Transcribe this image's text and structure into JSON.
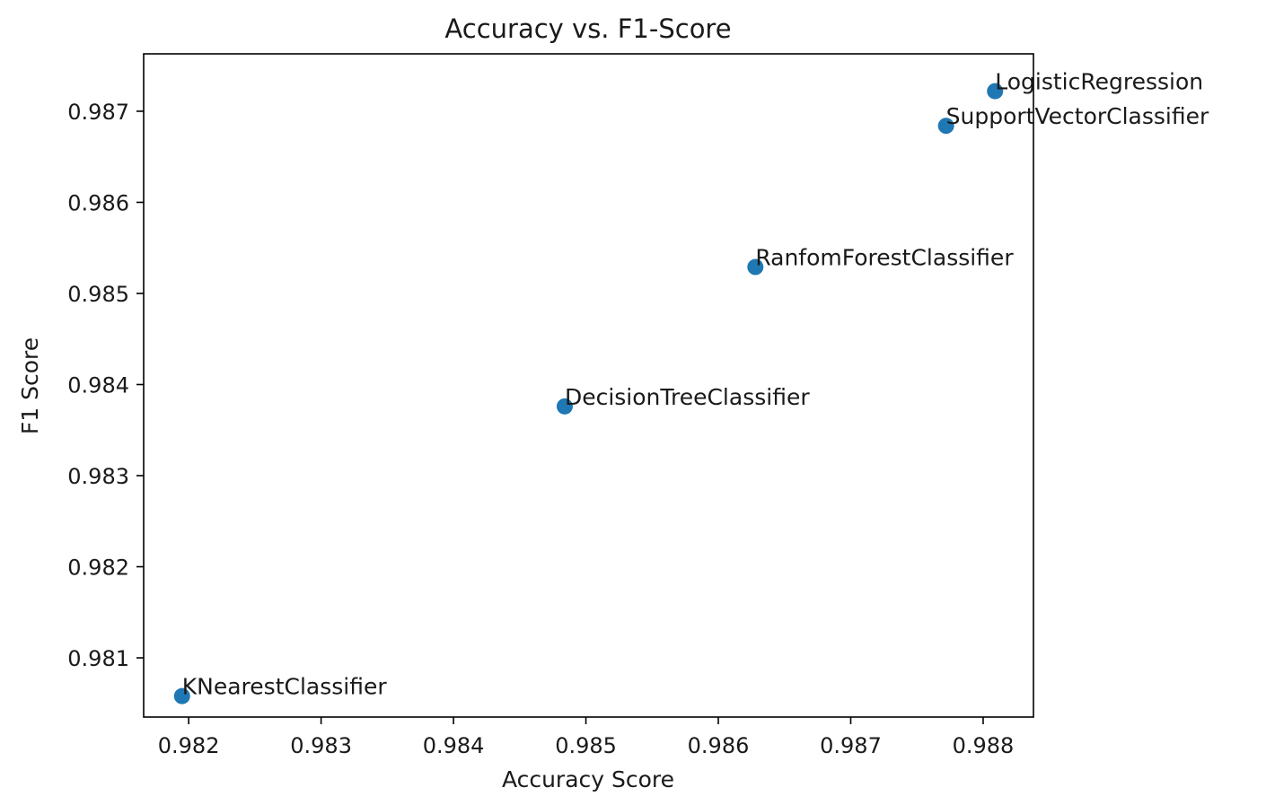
{
  "chart_data": {
    "type": "scatter",
    "title": "Accuracy vs. F1-Score",
    "xlabel": "Accuracy Score",
    "ylabel": "F1 Score",
    "xlim": [
      0.98166,
      0.98838
    ],
    "ylim": [
      0.98035,
      0.98763
    ],
    "xticks": [
      {
        "value": 0.982,
        "label": "0.982"
      },
      {
        "value": 0.983,
        "label": "0.983"
      },
      {
        "value": 0.984,
        "label": "0.984"
      },
      {
        "value": 0.985,
        "label": "0.985"
      },
      {
        "value": 0.986,
        "label": "0.986"
      },
      {
        "value": 0.987,
        "label": "0.987"
      },
      {
        "value": 0.988,
        "label": "0.988"
      }
    ],
    "yticks": [
      {
        "value": 0.981,
        "label": "0.981"
      },
      {
        "value": 0.982,
        "label": "0.982"
      },
      {
        "value": 0.983,
        "label": "0.983"
      },
      {
        "value": 0.984,
        "label": "0.984"
      },
      {
        "value": 0.985,
        "label": "0.985"
      },
      {
        "value": 0.986,
        "label": "0.986"
      },
      {
        "value": 0.987,
        "label": "0.987"
      }
    ],
    "grid": false,
    "marker_color": "#1f77b4",
    "points": [
      {
        "label": "KNearestClassifier",
        "x": 0.98195,
        "y": 0.98058
      },
      {
        "label": "DecisionTreeClassifier",
        "x": 0.98484,
        "y": 0.98376
      },
      {
        "label": "RanfomForestClassifier",
        "x": 0.98628,
        "y": 0.98529
      },
      {
        "label": "SupportVectorClassifier",
        "x": 0.98772,
        "y": 0.98684
      },
      {
        "label": "LogisticRegression",
        "x": 0.98809,
        "y": 0.98722
      }
    ]
  }
}
